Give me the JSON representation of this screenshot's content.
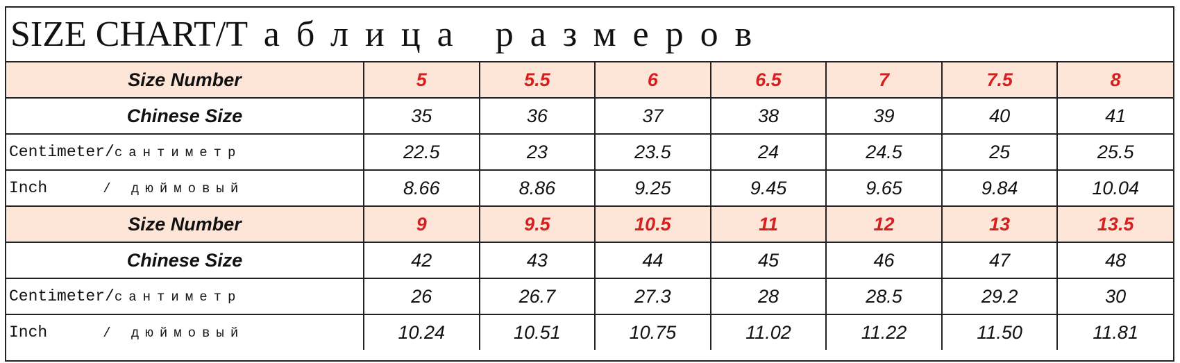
{
  "title": {
    "en": "SIZE CHART/",
    "ru": "Таблица размеров"
  },
  "colors": {
    "header_bg": "#fde6d8",
    "size_red": "#d71f1f"
  },
  "blocks": [
    {
      "size_number_label": "Size Number",
      "chinese_size_label": "Chinese Size",
      "cm_label_en": "Centimeter/",
      "cm_label_ru": "сантиметр",
      "inch_label_en": "Inch",
      "inch_label_ru": "/ дюймовый",
      "size_numbers": [
        "5",
        "5.5",
        "6",
        "6.5",
        "7",
        "7.5",
        "8"
      ],
      "chinese_sizes": [
        "35",
        "36",
        "37",
        "38",
        "39",
        "40",
        "41"
      ],
      "cm": [
        "22.5",
        "23",
        "23.5",
        "24",
        "24.5",
        "25",
        "25.5"
      ],
      "inch": [
        "8.66",
        "8.86",
        "9.25",
        "9.45",
        "9.65",
        "9.84",
        "10.04"
      ]
    },
    {
      "size_number_label": "Size Number",
      "chinese_size_label": "Chinese Size",
      "cm_label_en": "Centimeter/",
      "cm_label_ru": "сантиметр",
      "inch_label_en": "Inch",
      "inch_label_ru": "/ дюймовый",
      "size_numbers": [
        "9",
        "9.5",
        "10.5",
        "11",
        "12",
        "13",
        "13.5"
      ],
      "chinese_sizes": [
        "42",
        "43",
        "44",
        "45",
        "46",
        "47",
        "48"
      ],
      "cm": [
        "26",
        "26.7",
        "27.3",
        "28",
        "28.5",
        "29.2",
        "30"
      ],
      "inch": [
        "10.24",
        "10.51",
        "10.75",
        "11.02",
        "11.22",
        "11.50",
        "11.81"
      ]
    }
  ]
}
